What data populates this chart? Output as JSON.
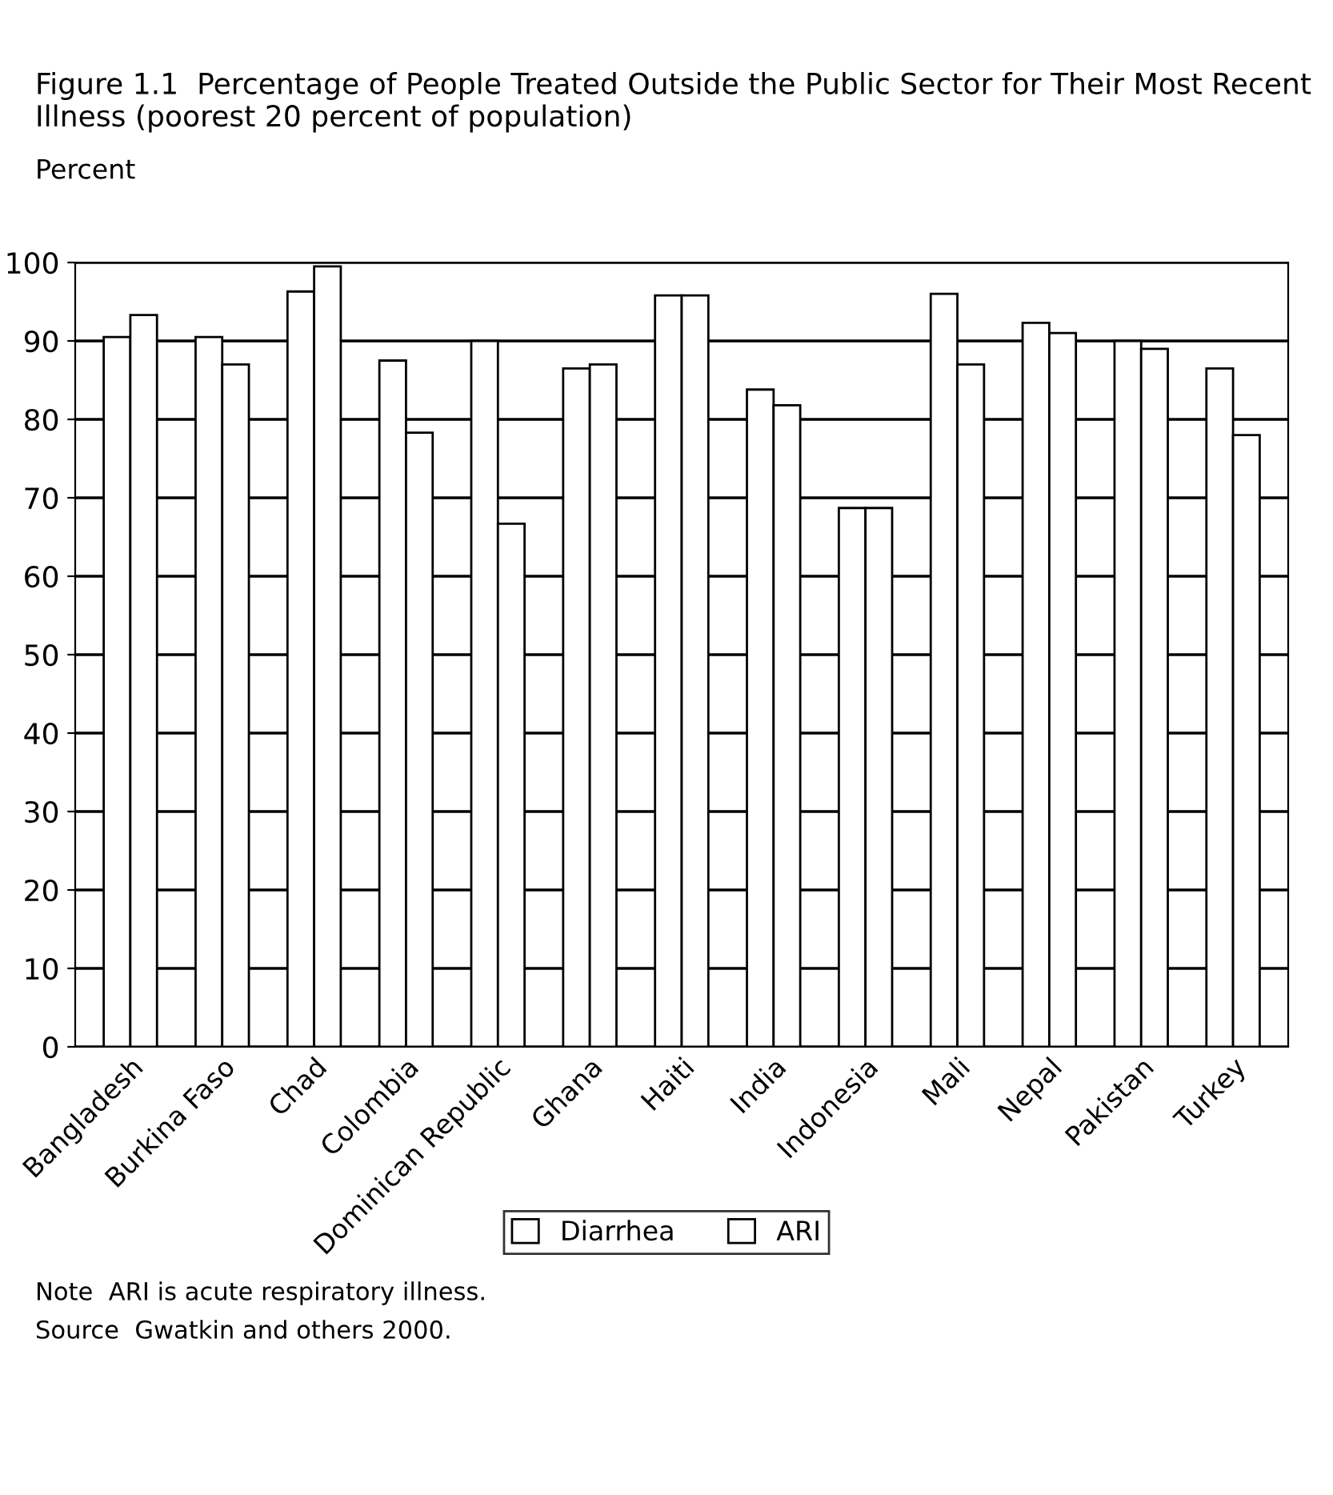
{
  "chart_data": {
    "type": "bar",
    "title": "Figure 1.1  Percentage of People Treated Outside the Public Sector for Their Most Recent Illness (poorest 20 percent of population)",
    "ylabel": "Percent",
    "categories": [
      "Bangladesh",
      "Burkina Faso",
      "Chad",
      "Colombia",
      "Dominican Republic",
      "Ghana",
      "Haiti",
      "India",
      "Indonesia",
      "Mali",
      "Nepal",
      "Pakistan",
      "Turkey"
    ],
    "series": [
      {
        "name": "Diarrhea",
        "color": "#ffffff",
        "values": [
          90.5,
          90.5,
          96.3,
          87.5,
          90,
          86.5,
          95.8,
          83.8,
          68.7,
          96,
          92.3,
          90,
          86.5
        ]
      },
      {
        "name": "ARI",
        "color": "#ffffff",
        "values": [
          93.3,
          87,
          99.5,
          78.3,
          66.7,
          87,
          95.8,
          81.8,
          68.7,
          87,
          91,
          89,
          78
        ]
      }
    ],
    "ylim": [
      0,
      100
    ],
    "yticks": [
      0,
      10,
      20,
      30,
      40,
      50,
      60,
      70,
      80,
      90,
      100
    ],
    "grid": "y",
    "legend": "bottom",
    "annotations": [
      "Note  ARI is acute respiratory illness.",
      "Source  Gwatkin and others 2000."
    ]
  }
}
